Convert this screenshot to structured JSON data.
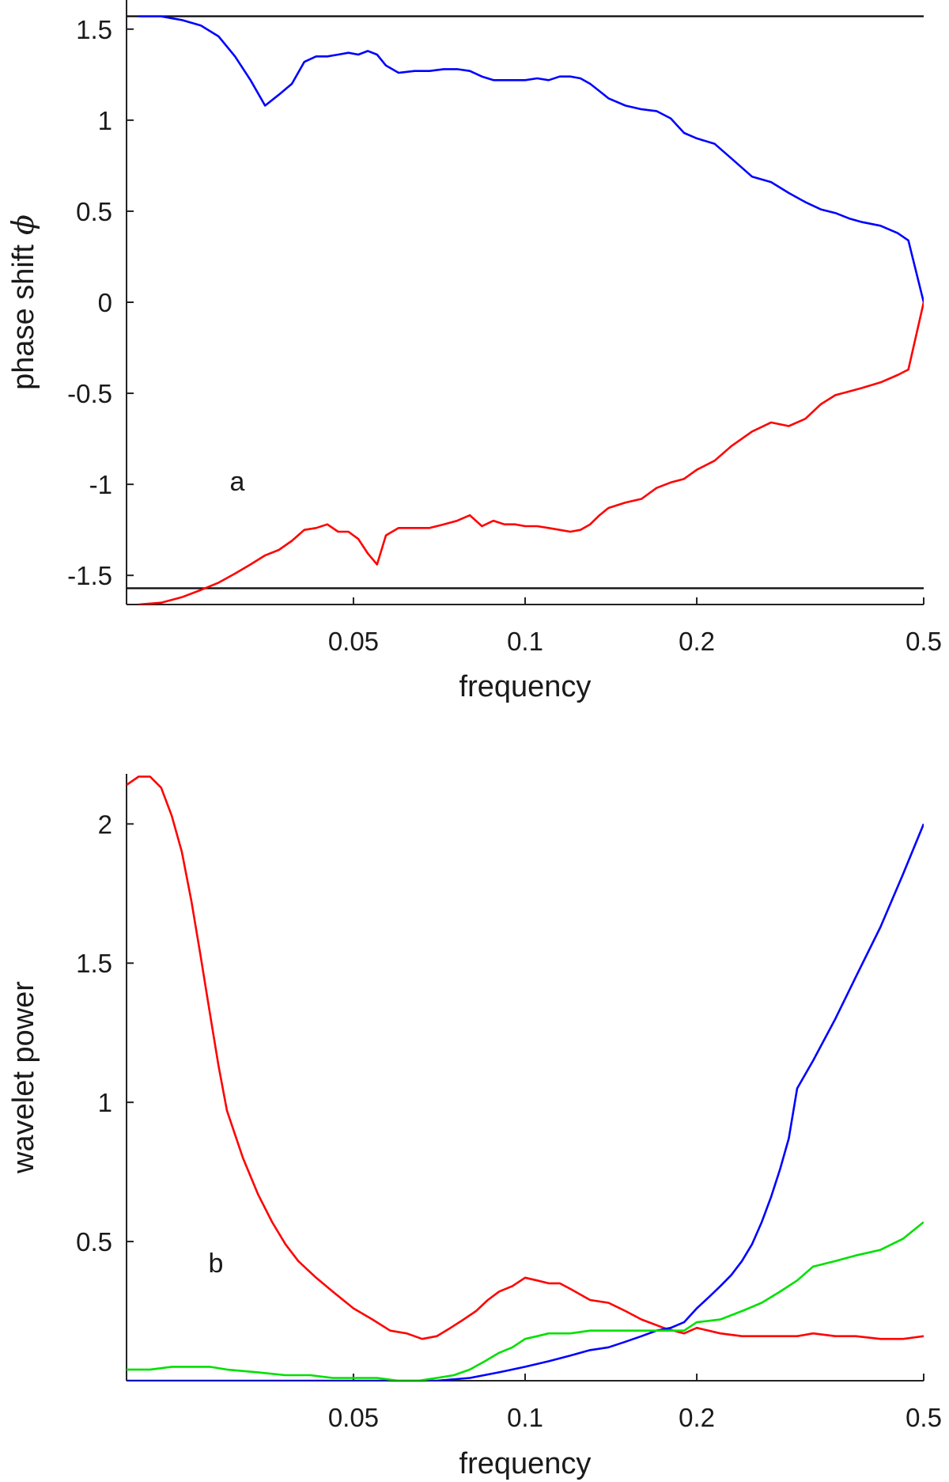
{
  "chart_data": [
    {
      "type": "line",
      "panel_label": "a",
      "xlabel": "frequency",
      "ylabel": "phase shift",
      "ylabel_symbol": "ϕ",
      "xscale": "log",
      "xlim": [
        0.02,
        0.5
      ],
      "ylim": [
        -1.66,
        1.66
      ],
      "xticks": [
        0.05,
        0.1,
        0.2,
        0.5
      ],
      "xtick_labels": [
        "0.05",
        "0.1",
        "0.2",
        "0.5"
      ],
      "yticks": [
        -1.5,
        -1,
        -0.5,
        0,
        0.5,
        1,
        1.5
      ],
      "ytick_labels": [
        "-1.5",
        "-1",
        "-0.5",
        "0",
        "0.5",
        "1",
        "1.5"
      ],
      "grid": false,
      "reference_lines": [
        1.5708,
        -1.5708
      ],
      "series": [
        {
          "color": "#0000ff",
          "x": [
            0.021,
            0.023,
            0.025,
            0.027,
            0.029,
            0.031,
            0.033,
            0.035,
            0.037,
            0.039,
            0.041,
            0.043,
            0.045,
            0.047,
            0.049,
            0.051,
            0.053,
            0.055,
            0.057,
            0.06,
            0.064,
            0.068,
            0.072,
            0.076,
            0.08,
            0.084,
            0.088,
            0.092,
            0.096,
            0.1,
            0.105,
            0.11,
            0.115,
            0.12,
            0.125,
            0.13,
            0.135,
            0.14,
            0.15,
            0.16,
            0.17,
            0.18,
            0.19,
            0.2,
            0.215,
            0.23,
            0.25,
            0.27,
            0.29,
            0.31,
            0.33,
            0.35,
            0.37,
            0.39,
            0.42,
            0.45,
            0.47,
            0.5
          ],
          "y": [
            1.57,
            1.57,
            1.55,
            1.52,
            1.46,
            1.35,
            1.22,
            1.08,
            1.14,
            1.2,
            1.32,
            1.35,
            1.35,
            1.36,
            1.37,
            1.36,
            1.38,
            1.36,
            1.3,
            1.26,
            1.27,
            1.27,
            1.28,
            1.28,
            1.27,
            1.24,
            1.22,
            1.22,
            1.22,
            1.22,
            1.23,
            1.22,
            1.24,
            1.24,
            1.23,
            1.2,
            1.16,
            1.12,
            1.08,
            1.06,
            1.05,
            1.01,
            0.93,
            0.9,
            0.87,
            0.79,
            0.69,
            0.66,
            0.6,
            0.55,
            0.51,
            0.49,
            0.46,
            0.44,
            0.42,
            0.38,
            0.34,
            0.0
          ]
        },
        {
          "color": "#ff0000",
          "x": [
            0.021,
            0.023,
            0.025,
            0.027,
            0.029,
            0.031,
            0.033,
            0.035,
            0.037,
            0.039,
            0.041,
            0.043,
            0.045,
            0.047,
            0.049,
            0.051,
            0.053,
            0.055,
            0.057,
            0.06,
            0.064,
            0.068,
            0.072,
            0.076,
            0.08,
            0.084,
            0.088,
            0.092,
            0.096,
            0.1,
            0.105,
            0.11,
            0.115,
            0.12,
            0.125,
            0.13,
            0.135,
            0.14,
            0.15,
            0.16,
            0.17,
            0.18,
            0.19,
            0.2,
            0.215,
            0.23,
            0.25,
            0.27,
            0.29,
            0.31,
            0.33,
            0.35,
            0.37,
            0.39,
            0.42,
            0.45,
            0.47,
            0.5
          ],
          "y": [
            -1.66,
            -1.65,
            -1.62,
            -1.58,
            -1.54,
            -1.49,
            -1.44,
            -1.39,
            -1.36,
            -1.31,
            -1.25,
            -1.24,
            -1.22,
            -1.26,
            -1.26,
            -1.3,
            -1.38,
            -1.44,
            -1.28,
            -1.24,
            -1.24,
            -1.24,
            -1.22,
            -1.2,
            -1.17,
            -1.23,
            -1.2,
            -1.22,
            -1.22,
            -1.23,
            -1.23,
            -1.24,
            -1.25,
            -1.26,
            -1.25,
            -1.22,
            -1.17,
            -1.13,
            -1.1,
            -1.08,
            -1.02,
            -0.99,
            -0.97,
            -0.92,
            -0.87,
            -0.79,
            -0.71,
            -0.66,
            -0.68,
            -0.64,
            -0.56,
            -0.51,
            -0.49,
            -0.47,
            -0.44,
            -0.4,
            -0.37,
            0.0
          ]
        }
      ]
    },
    {
      "type": "line",
      "panel_label": "b",
      "xlabel": "frequency",
      "ylabel": "wavelet power",
      "xscale": "log",
      "xlim": [
        0.02,
        0.5
      ],
      "ylim": [
        0,
        2.18
      ],
      "xticks": [
        0.05,
        0.1,
        0.2,
        0.5
      ],
      "xtick_labels": [
        "0.05",
        "0.1",
        "0.2",
        "0.5"
      ],
      "yticks": [
        0.5,
        1,
        1.5,
        2
      ],
      "ytick_labels": [
        "0.5",
        "1",
        "1.5",
        "2"
      ],
      "grid": false,
      "series": [
        {
          "color": "#ff0000",
          "x": [
            0.02,
            0.021,
            0.022,
            0.023,
            0.024,
            0.025,
            0.026,
            0.027,
            0.028,
            0.029,
            0.03,
            0.032,
            0.034,
            0.036,
            0.038,
            0.04,
            0.043,
            0.046,
            0.05,
            0.054,
            0.058,
            0.062,
            0.066,
            0.07,
            0.074,
            0.078,
            0.082,
            0.086,
            0.09,
            0.095,
            0.1,
            0.105,
            0.11,
            0.115,
            0.12,
            0.13,
            0.14,
            0.15,
            0.16,
            0.175,
            0.19,
            0.2,
            0.22,
            0.24,
            0.26,
            0.28,
            0.3,
            0.32,
            0.35,
            0.38,
            0.42,
            0.46,
            0.5
          ],
          "y": [
            2.14,
            2.17,
            2.17,
            2.13,
            2.03,
            1.9,
            1.72,
            1.52,
            1.32,
            1.13,
            0.97,
            0.8,
            0.67,
            0.57,
            0.49,
            0.43,
            0.37,
            0.32,
            0.26,
            0.22,
            0.18,
            0.17,
            0.15,
            0.16,
            0.19,
            0.22,
            0.25,
            0.29,
            0.32,
            0.34,
            0.37,
            0.36,
            0.35,
            0.35,
            0.33,
            0.29,
            0.28,
            0.25,
            0.22,
            0.19,
            0.17,
            0.19,
            0.17,
            0.16,
            0.16,
            0.16,
            0.16,
            0.17,
            0.16,
            0.16,
            0.15,
            0.15,
            0.16
          ]
        },
        {
          "color": "#0000ff",
          "x": [
            0.02,
            0.03,
            0.04,
            0.05,
            0.06,
            0.07,
            0.08,
            0.09,
            0.1,
            0.11,
            0.12,
            0.13,
            0.14,
            0.15,
            0.16,
            0.17,
            0.18,
            0.19,
            0.2,
            0.21,
            0.22,
            0.23,
            0.24,
            0.25,
            0.26,
            0.27,
            0.28,
            0.29,
            0.3,
            0.32,
            0.35,
            0.38,
            0.42,
            0.46,
            0.5
          ],
          "y": [
            0.0,
            0.0,
            0.0,
            0.0,
            0.0,
            0.0,
            0.01,
            0.03,
            0.05,
            0.07,
            0.09,
            0.11,
            0.12,
            0.14,
            0.16,
            0.18,
            0.19,
            0.21,
            0.26,
            0.3,
            0.34,
            0.38,
            0.43,
            0.49,
            0.57,
            0.66,
            0.76,
            0.87,
            1.05,
            1.15,
            1.3,
            1.45,
            1.63,
            1.82,
            2.0
          ]
        },
        {
          "color": "#00e000",
          "x": [
            0.02,
            0.022,
            0.024,
            0.026,
            0.028,
            0.03,
            0.034,
            0.038,
            0.042,
            0.046,
            0.05,
            0.055,
            0.06,
            0.065,
            0.07,
            0.075,
            0.08,
            0.085,
            0.09,
            0.095,
            0.1,
            0.105,
            0.11,
            0.115,
            0.12,
            0.13,
            0.14,
            0.15,
            0.16,
            0.18,
            0.19,
            0.2,
            0.22,
            0.24,
            0.26,
            0.28,
            0.3,
            0.32,
            0.35,
            0.38,
            0.42,
            0.46,
            0.5
          ],
          "y": [
            0.04,
            0.04,
            0.05,
            0.05,
            0.05,
            0.04,
            0.03,
            0.02,
            0.02,
            0.01,
            0.01,
            0.01,
            0.0,
            0.0,
            0.01,
            0.02,
            0.04,
            0.07,
            0.1,
            0.12,
            0.15,
            0.16,
            0.17,
            0.17,
            0.17,
            0.18,
            0.18,
            0.18,
            0.18,
            0.18,
            0.18,
            0.21,
            0.22,
            0.25,
            0.28,
            0.32,
            0.36,
            0.41,
            0.43,
            0.45,
            0.47,
            0.51,
            0.57
          ]
        }
      ]
    }
  ]
}
